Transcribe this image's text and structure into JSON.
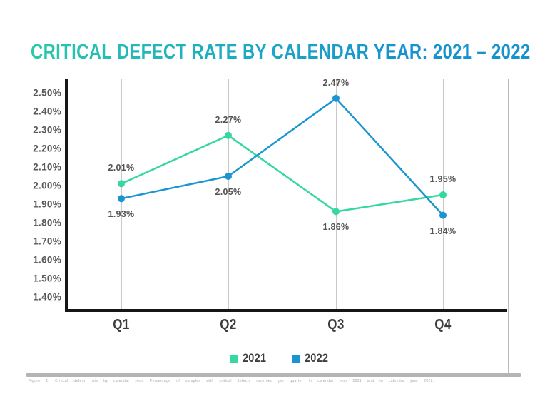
{
  "title": "CRITICAL DEFECT RATE BY CALENDAR YEAR: 2021 – 2022",
  "colors": {
    "series_2021": "#35d89e",
    "series_2022": "#1b95d2",
    "title_gradient_start": "#2cc7ac",
    "title_gradient_end": "#1692cf",
    "axis": "#161616",
    "gridline": "#c9c9c9",
    "label_gray": "#58595b"
  },
  "chart_data": {
    "type": "line",
    "title": "CRITICAL DEFECT RATE BY CALENDAR YEAR: 2021 – 2022",
    "categories": [
      "Q1",
      "Q2",
      "Q3",
      "Q4"
    ],
    "series": [
      {
        "name": "2021",
        "color": "#35d89e",
        "values": [
          2.01,
          2.27,
          1.86,
          1.95
        ],
        "point_labels": [
          "2.01%",
          "2.27%",
          "1.86%",
          "1.95%"
        ],
        "label_positions": [
          "above",
          "above",
          "below",
          "above"
        ]
      },
      {
        "name": "2022",
        "color": "#1b95d2",
        "values": [
          1.93,
          2.05,
          2.47,
          1.84
        ],
        "point_labels": [
          "1.93%",
          "2.05%",
          "2.47%",
          "1.84%"
        ],
        "label_positions": [
          "below",
          "below",
          "above",
          "below"
        ]
      }
    ],
    "ylim": [
      1.4,
      2.5
    ],
    "ytick_step": 0.1,
    "ytick_labels": [
      "2.50%",
      "2.40%",
      "2.30%",
      "2.20%",
      "2.10%",
      "2.00%",
      "1.90%",
      "1.80%",
      "1.70%",
      "1.60%",
      "1.50%",
      "1.40%"
    ],
    "xlabel": "",
    "ylabel": "",
    "grid": "vertical-only",
    "legend_position": "bottom-center"
  },
  "legend": {
    "items": [
      {
        "label": "2021",
        "color": "#35d89e"
      },
      {
        "label": "2022",
        "color": "#1b95d2"
      }
    ]
  },
  "caption": "Figure 1: Critical defect rate by calendar year. Percentage of samples with critical defects recorded per quarter in calendar year 2021 and in calendar year 2022."
}
